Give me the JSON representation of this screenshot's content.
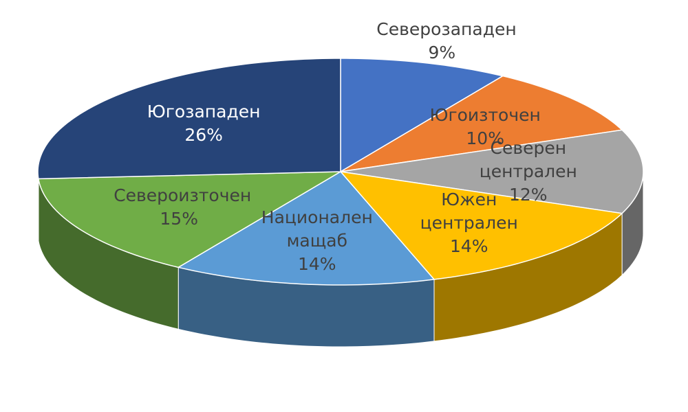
{
  "chart_data": {
    "type": "pie",
    "three_d": true,
    "categories": [
      "Северозападен",
      "Югоизточен",
      "Северен централен",
      "Южен централен",
      "Национален мащаб",
      "Североизточен",
      "Югозападен"
    ],
    "values": [
      9,
      10,
      12,
      14,
      14,
      15,
      26
    ],
    "value_labels": [
      "9%",
      "10%",
      "12%",
      "14%",
      "14%",
      "15%",
      "26%"
    ],
    "colors": [
      "#4472c4",
      "#ed7d31",
      "#a5a5a5",
      "#ffc000",
      "#5b9bd5",
      "#70ad47",
      "#264478"
    ]
  }
}
